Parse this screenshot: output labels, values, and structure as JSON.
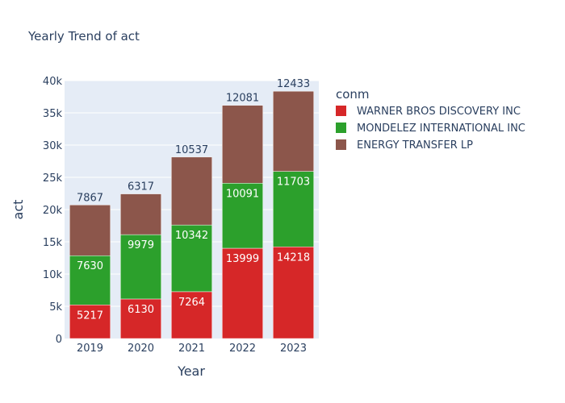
{
  "chart_data": {
    "type": "bar",
    "barmode": "stack",
    "title": "Yearly Trend of act",
    "xlabel": "Year",
    "ylabel": "act",
    "ylim": [
      0,
      40000
    ],
    "yticks": [
      0,
      5000,
      10000,
      15000,
      20000,
      25000,
      30000,
      35000,
      40000
    ],
    "ytick_labels": [
      "0",
      "5k",
      "10k",
      "15k",
      "20k",
      "25k",
      "30k",
      "35k",
      "40k"
    ],
    "categories": [
      "2019",
      "2020",
      "2021",
      "2022",
      "2023"
    ],
    "legend_title": "conm",
    "legend_position": "right",
    "grid": true,
    "plot_bg": "#e5ecf6",
    "series": [
      {
        "name": "WARNER BROS DISCOVERY INC",
        "color": "#d62728",
        "values": [
          5217,
          6130,
          7264,
          13999,
          14218
        ],
        "labels": [
          "5217",
          "6130",
          "7264",
          "13999",
          "14218"
        ]
      },
      {
        "name": "MONDELEZ INTERNATIONAL INC",
        "color": "#2ca02c",
        "values": [
          7630,
          9979,
          10342,
          10091,
          11703
        ],
        "labels": [
          "7630",
          "9979",
          "10342",
          "10091",
          "11703"
        ]
      },
      {
        "name": "ENERGY TRANSFER LP",
        "color": "#8c564b",
        "values": [
          7867,
          6317,
          10537,
          12081,
          12433
        ],
        "labels": [
          "7867",
          "6317",
          "10537",
          "12081",
          "12433"
        ]
      }
    ]
  }
}
